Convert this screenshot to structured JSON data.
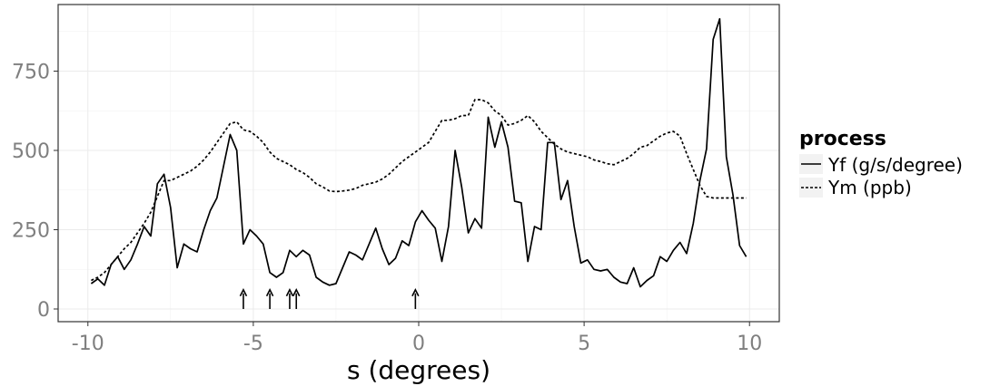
{
  "chart_data": {
    "type": "line",
    "title": "",
    "xlabel": "s (degrees)",
    "ylabel": "",
    "xlim": [
      -10.9,
      10.9
    ],
    "ylim": [
      -40,
      960
    ],
    "x_ticks": [
      -10,
      -5,
      0,
      5,
      10
    ],
    "x_tick_labels": [
      "-10",
      "-5",
      "0",
      "5",
      "10"
    ],
    "y_ticks": [
      0,
      250,
      500,
      750
    ],
    "y_tick_labels": [
      "0",
      "250",
      "500",
      "750"
    ],
    "grid": true,
    "legend": {
      "title": "process",
      "placement": "right"
    },
    "series": [
      {
        "name": "Yf (g/s/degree)",
        "style": "solid",
        "x": [
          -9.9,
          -9.7,
          -9.5,
          -9.3,
          -9.1,
          -8.9,
          -8.7,
          -8.5,
          -8.3,
          -8.1,
          -7.9,
          -7.7,
          -7.5,
          -7.3,
          -7.1,
          -6.9,
          -6.7,
          -6.5,
          -6.3,
          -6.1,
          -5.9,
          -5.7,
          -5.5,
          -5.3,
          -5.1,
          -4.9,
          -4.7,
          -4.5,
          -4.3,
          -4.1,
          -3.9,
          -3.7,
          -3.5,
          -3.3,
          -3.1,
          -2.9,
          -2.7,
          -2.5,
          -2.3,
          -2.1,
          -1.9,
          -1.7,
          -1.5,
          -1.3,
          -1.1,
          -0.9,
          -0.7,
          -0.5,
          -0.3,
          -0.1,
          0.1,
          0.3,
          0.5,
          0.7,
          0.9,
          1.1,
          1.3,
          1.5,
          1.7,
          1.9,
          2.1,
          2.3,
          2.5,
          2.7,
          2.9,
          3.1,
          3.3,
          3.5,
          3.7,
          3.9,
          4.1,
          4.3,
          4.5,
          4.7,
          4.9,
          5.1,
          5.3,
          5.5,
          5.7,
          5.9,
          6.1,
          6.3,
          6.5,
          6.7,
          6.9,
          7.1,
          7.3,
          7.5,
          7.7,
          7.9,
          8.1,
          8.3,
          8.5,
          8.7,
          8.9,
          9.1,
          9.3,
          9.5,
          9.7,
          9.9
        ],
        "values": [
          80,
          95,
          75,
          140,
          165,
          125,
          155,
          205,
          260,
          230,
          395,
          425,
          320,
          130,
          205,
          190,
          180,
          250,
          310,
          350,
          450,
          550,
          500,
          205,
          250,
          230,
          205,
          115,
          100,
          115,
          185,
          165,
          185,
          170,
          100,
          85,
          75,
          80,
          130,
          180,
          170,
          155,
          205,
          255,
          190,
          140,
          160,
          215,
          200,
          275,
          310,
          280,
          255,
          150,
          260,
          500,
          385,
          240,
          285,
          255,
          605,
          510,
          590,
          510,
          340,
          335,
          150,
          260,
          250,
          525,
          525,
          345,
          405,
          260,
          145,
          155,
          125,
          120,
          125,
          100,
          85,
          80,
          130,
          70,
          90,
          105,
          165,
          150,
          185,
          210,
          175,
          270,
          405,
          505,
          850,
          915,
          480,
          360,
          200,
          165
        ]
      },
      {
        "name": "Ym (ppb)",
        "style": "dashed",
        "x": [
          -9.9,
          -9.7,
          -9.5,
          -9.3,
          -9.1,
          -8.9,
          -8.7,
          -8.5,
          -8.3,
          -8.1,
          -7.9,
          -7.7,
          -7.5,
          -7.3,
          -7.1,
          -6.9,
          -6.7,
          -6.5,
          -6.3,
          -6.1,
          -5.9,
          -5.7,
          -5.5,
          -5.3,
          -5.1,
          -4.9,
          -4.7,
          -4.5,
          -4.3,
          -4.1,
          -3.9,
          -3.7,
          -3.5,
          -3.3,
          -3.1,
          -2.9,
          -2.7,
          -2.5,
          -2.3,
          -2.1,
          -1.9,
          -1.7,
          -1.5,
          -1.3,
          -1.1,
          -0.9,
          -0.7,
          -0.5,
          -0.3,
          -0.1,
          0.1,
          0.3,
          0.5,
          0.7,
          0.9,
          1.1,
          1.3,
          1.5,
          1.7,
          1.9,
          2.1,
          2.3,
          2.5,
          2.7,
          2.9,
          3.1,
          3.3,
          3.5,
          3.7,
          3.9,
          4.1,
          4.3,
          4.5,
          4.7,
          4.9,
          5.1,
          5.3,
          5.5,
          5.7,
          5.9,
          6.1,
          6.3,
          6.5,
          6.7,
          6.9,
          7.1,
          7.3,
          7.5,
          7.7,
          7.9,
          8.1,
          8.3,
          8.5,
          8.7,
          8.9,
          9.1,
          9.3,
          9.5,
          9.7,
          9.9
        ],
        "values": [
          90,
          100,
          115,
          140,
          165,
          190,
          210,
          240,
          270,
          305,
          355,
          405,
          405,
          415,
          425,
          435,
          450,
          470,
          495,
          525,
          555,
          585,
          590,
          565,
          560,
          545,
          525,
          495,
          475,
          465,
          455,
          440,
          430,
          415,
          395,
          385,
          372,
          370,
          372,
          375,
          380,
          390,
          395,
          400,
          410,
          425,
          445,
          465,
          480,
          495,
          510,
          525,
          560,
          595,
          595,
          600,
          610,
          610,
          660,
          660,
          650,
          625,
          610,
          580,
          585,
          595,
          610,
          590,
          560,
          540,
          520,
          505,
          495,
          490,
          485,
          480,
          470,
          465,
          458,
          455,
          465,
          475,
          490,
          510,
          515,
          530,
          545,
          555,
          560,
          545,
          490,
          440,
          390,
          355,
          350,
          350,
          350,
          350,
          350,
          350
        ]
      }
    ],
    "arrows_x": [
      -5.3,
      -4.5,
      -3.9,
      -3.7,
      -0.1
    ]
  }
}
